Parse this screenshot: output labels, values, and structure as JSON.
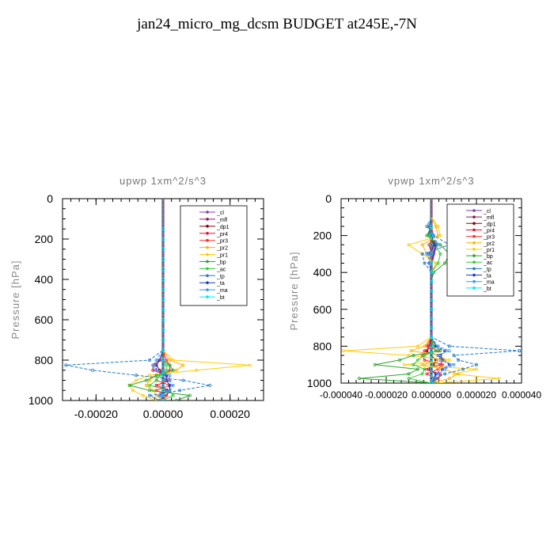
{
  "title": "jan24_micro_mg_dcsm  BUDGET at245E,-7N",
  "legend_entries": [
    "_cl",
    "_mfl",
    "_dp1",
    "_pr4",
    "_pr3",
    "_pr2",
    "_pr1",
    "_bp",
    "_ac",
    "_tp",
    "_ta",
    "_ma",
    "_bt"
  ],
  "series_colors": [
    "#7a3fa8",
    "#8b1a5e",
    "#8b0000",
    "#e8102f",
    "#ff2a2a",
    "#ffb000",
    "#ffcc00",
    "#2aa62a",
    "#33cc33",
    "#1f7ac9",
    "#1a3dc9",
    "#3399ff",
    "#00e5ff"
  ],
  "levels": [
    0,
    50,
    100,
    150,
    200,
    250,
    300,
    350,
    400,
    450,
    500,
    550,
    600,
    650,
    700,
    750,
    800,
    825,
    850,
    875,
    900,
    925,
    950,
    975,
    1000
  ],
  "chart_data": [
    {
      "type": "line",
      "title": "upwp    1xm^2/s^3",
      "ylabel": "Pressure  [hPa]",
      "xlabel": "",
      "xlim": [
        -0.0003,
        0.0003
      ],
      "ylim": [
        1000,
        0
      ],
      "x_tick_labels": [
        "-0.00020",
        "0.00000",
        "0.00020"
      ],
      "x_tick_values": [
        -0.0002,
        0,
        0.0002
      ],
      "y_tick_labels": [
        "0",
        "200",
        "400",
        "600",
        "800",
        "1000"
      ],
      "y_tick_values": [
        0,
        200,
        400,
        600,
        800,
        1000
      ],
      "legend": "top-right",
      "series": [
        {
          "name": "_cl",
          "values": [
            0,
            0,
            0,
            0,
            0,
            0,
            0,
            0,
            0,
            0,
            0,
            0,
            0,
            0,
            0,
            0,
            0,
            0,
            0,
            0,
            0,
            0,
            0,
            0,
            0
          ]
        },
        {
          "name": "_mfl",
          "values": [
            0,
            0,
            0,
            0,
            0,
            0,
            0,
            0,
            0,
            0,
            0,
            0,
            0,
            0,
            0,
            0,
            0,
            0,
            0,
            0,
            0,
            0,
            0,
            0,
            0
          ]
        },
        {
          "name": "_dp1",
          "values": [
            0,
            0,
            0,
            0,
            0,
            0,
            0,
            0,
            0,
            0,
            0,
            0,
            0,
            0,
            0,
            0,
            -1e-05,
            -2e-05,
            -1e-05,
            1e-05,
            1e-05,
            2e-05,
            2e-05,
            1e-05,
            0
          ]
        },
        {
          "name": "_pr4",
          "values": [
            0,
            0,
            0,
            0,
            0,
            0,
            0,
            0,
            0,
            0,
            0,
            0,
            0,
            0,
            0,
            0,
            -1e-05,
            -3e-05,
            -3e-05,
            1e-05,
            2e-05,
            -2e-05,
            2e-05,
            -1e-05,
            0
          ]
        },
        {
          "name": "_pr3",
          "values": [
            0,
            0,
            0,
            0,
            0,
            0,
            0,
            0,
            0,
            0,
            0,
            0,
            0,
            0,
            0,
            0,
            1e-05,
            2e-05,
            2e-05,
            -1e-05,
            -2e-05,
            2e-05,
            -2e-05,
            1e-05,
            0
          ]
        },
        {
          "name": "_pr2",
          "values": [
            0,
            0,
            0,
            0,
            0,
            0,
            0,
            0,
            0,
            0,
            0,
            0,
            0,
            0,
            0,
            0,
            2e-05,
            6e-05,
            4e-05,
            -2e-05,
            -4e-05,
            -5e-05,
            -3e-05,
            -2e-05,
            0
          ]
        },
        {
          "name": "_pr1",
          "values": [
            0,
            0,
            0,
            0,
            0,
            0,
            0,
            0,
            0,
            0,
            0,
            0,
            0,
            0,
            0,
            0,
            3e-05,
            0.00026,
            0.0001,
            -4e-05,
            -8e-05,
            -0.0001,
            -9e-05,
            -6e-05,
            -2e-05
          ]
        },
        {
          "name": "_bp",
          "values": [
            0,
            0,
            0,
            0,
            0,
            0,
            0,
            0,
            0,
            0,
            0,
            0,
            0,
            0,
            0,
            0,
            0,
            2e-05,
            3e-05,
            -2e-05,
            -5e-05,
            -0.0001,
            -4e-05,
            8e-05,
            4e-05
          ]
        },
        {
          "name": "_ac",
          "values": [
            0,
            0,
            0,
            0,
            0,
            0,
            0,
            0,
            0,
            0,
            0,
            0,
            0,
            0,
            0,
            0,
            0,
            1e-05,
            1e-05,
            -1e-05,
            -2e-05,
            -4e-05,
            2e-05,
            3e-05,
            0
          ]
        },
        {
          "name": "_tp",
          "values": [
            0,
            0,
            0,
            0,
            0,
            0,
            0,
            0,
            0,
            0,
            0,
            0,
            0,
            0,
            0,
            0,
            -4e-05,
            -0.00029,
            -0.00021,
            -8e-05,
            6e-05,
            0.00014,
            5e-05,
            -4e-05,
            -1e-05
          ]
        },
        {
          "name": "_ta",
          "values": [
            0,
            0,
            0,
            0,
            0,
            0,
            0,
            0,
            0,
            0,
            0,
            0,
            0,
            0,
            0,
            0,
            -1e-05,
            -2e-05,
            -2e-05,
            1e-05,
            1e-05,
            2e-05,
            1e-05,
            -1e-05,
            0
          ]
        },
        {
          "name": "_ma",
          "values": [
            0,
            0,
            0,
            0,
            0,
            0,
            0,
            0,
            0,
            0,
            0,
            0,
            0,
            0,
            0,
            0,
            -2e-05,
            -3e-05,
            -2e-05,
            2e-05,
            2e-05,
            3e-05,
            2e-05,
            -1e-05,
            0
          ]
        },
        {
          "name": "_bt",
          "values": [
            0,
            0,
            0,
            0,
            0,
            0,
            0,
            0,
            0,
            0,
            0,
            0,
            0,
            0,
            0,
            0,
            0,
            0,
            0,
            0,
            0,
            0,
            0,
            0,
            0
          ]
        }
      ]
    },
    {
      "type": "line",
      "title": "vpwp    1xm^2/s^3",
      "ylabel": "Pressure  [hPa]",
      "xlabel": "",
      "xlim": [
        -4e-05,
        4e-05
      ],
      "ylim": [
        1000,
        0
      ],
      "x_tick_labels": [
        "-0.000040",
        "-0.000020",
        "0.000000",
        "0.000020",
        "0.000040"
      ],
      "x_tick_values": [
        -4e-05,
        -2e-05,
        0,
        2e-05,
        4e-05
      ],
      "y_tick_labels": [
        "0",
        "200",
        "400",
        "600",
        "800",
        "1000"
      ],
      "y_tick_values": [
        0,
        200,
        400,
        600,
        800,
        1000
      ],
      "legend": "top-right",
      "series": [
        {
          "name": "_cl",
          "values": [
            0,
            0,
            0,
            0,
            -1e-06,
            2e-06,
            1e-06,
            0,
            0,
            0,
            0,
            0,
            0,
            0,
            0,
            0,
            0,
            0,
            0,
            0,
            0,
            0,
            0,
            0,
            0
          ]
        },
        {
          "name": "_mfl",
          "values": [
            0,
            0,
            0,
            0,
            0,
            0,
            0,
            0,
            0,
            0,
            0,
            0,
            0,
            0,
            0,
            0,
            0,
            0,
            0,
            0,
            0,
            0,
            0,
            0,
            0
          ]
        },
        {
          "name": "_dp1",
          "values": [
            0,
            0,
            0,
            -1e-06,
            0,
            1e-06,
            0,
            0,
            0,
            0,
            0,
            0,
            0,
            0,
            0,
            0,
            -1e-06,
            -2e-06,
            0,
            2e-06,
            1e-06,
            -1e-06,
            2e-06,
            1e-06,
            0
          ]
        },
        {
          "name": "_pr4",
          "values": [
            0,
            0,
            0,
            0,
            0,
            0,
            0,
            0,
            0,
            0,
            0,
            0,
            0,
            0,
            0,
            0,
            2e-06,
            -3e-06,
            3e-06,
            5e-06,
            4e-06,
            -3e-06,
            4e-06,
            3e-06,
            0
          ]
        },
        {
          "name": "_pr3",
          "values": [
            0,
            0,
            0,
            0,
            1e-06,
            -1e-06,
            0,
            0,
            0,
            0,
            0,
            0,
            0,
            0,
            0,
            0,
            -2e-06,
            3e-06,
            -4e-06,
            -3e-06,
            5e-06,
            3e-06,
            -2e-06,
            2e-06,
            0
          ]
        },
        {
          "name": "_pr2",
          "values": [
            0,
            0,
            0,
            2e-06,
            3e-06,
            -4e-06,
            -2e-06,
            0,
            0,
            0,
            0,
            0,
            0,
            0,
            0,
            0,
            -3e-06,
            -9e-06,
            4e-06,
            6e-06,
            -4e-06,
            5e-06,
            1.2e-05,
            8e-06,
            0
          ]
        },
        {
          "name": "_pr1",
          "values": [
            0,
            0,
            0,
            3e-06,
            4e-06,
            -1e-05,
            -4e-06,
            2e-06,
            0,
            0,
            0,
            0,
            0,
            0,
            0,
            0,
            -6e-06,
            -3.9e-05,
            -1e-05,
            8e-06,
            -1.2e-05,
            2e-05,
            1e-05,
            3e-05,
            2e-06
          ]
        },
        {
          "name": "_bp",
          "values": [
            0,
            0,
            0,
            0,
            -2e-06,
            4e-06,
            8e-06,
            6e-06,
            1e-06,
            0,
            0,
            0,
            0,
            0,
            0,
            0,
            2e-06,
            4e-06,
            -8e-06,
            -1.4e-05,
            -2.5e-05,
            -6e-06,
            -1e-05,
            -3.2e-05,
            2e-06
          ]
        },
        {
          "name": "_ac",
          "values": [
            0,
            0,
            0,
            0,
            -1e-06,
            2e-06,
            4e-06,
            3e-06,
            0,
            0,
            0,
            0,
            0,
            0,
            0,
            0,
            1e-06,
            2e-06,
            -3e-06,
            -6e-06,
            -8e-06,
            -3e-06,
            -4e-06,
            -1e-05,
            0
          ]
        },
        {
          "name": "_tp",
          "values": [
            0,
            0,
            0,
            -2e-06,
            1e-06,
            8e-06,
            -4e-06,
            -3e-06,
            0,
            0,
            0,
            0,
            0,
            0,
            0,
            0,
            8e-06,
            3.9e-05,
            1e-05,
            1.2e-05,
            2e-05,
            1.4e-05,
            6e-06,
            2e-06,
            0
          ]
        },
        {
          "name": "_ta",
          "values": [
            0,
            0,
            0,
            -1e-06,
            0,
            2e-06,
            -1e-06,
            -1e-06,
            0,
            0,
            0,
            0,
            0,
            0,
            0,
            0,
            2e-06,
            6e-06,
            4e-06,
            5e-06,
            8e-06,
            5e-06,
            2e-06,
            1e-06,
            0
          ]
        },
        {
          "name": "_ma",
          "values": [
            0,
            0,
            0,
            -1e-06,
            1e-06,
            3e-06,
            -2e-06,
            0,
            0,
            0,
            0,
            0,
            0,
            0,
            0,
            0,
            3e-06,
            8e-06,
            3e-06,
            4e-06,
            1e-05,
            6e-06,
            3e-06,
            1e-06,
            0
          ]
        },
        {
          "name": "_bt",
          "values": [
            0,
            0,
            0,
            0,
            0,
            0,
            0,
            0,
            0,
            0,
            0,
            0,
            0,
            0,
            0,
            0,
            0,
            0,
            0,
            0,
            0,
            0,
            0,
            0,
            0
          ]
        }
      ]
    }
  ]
}
